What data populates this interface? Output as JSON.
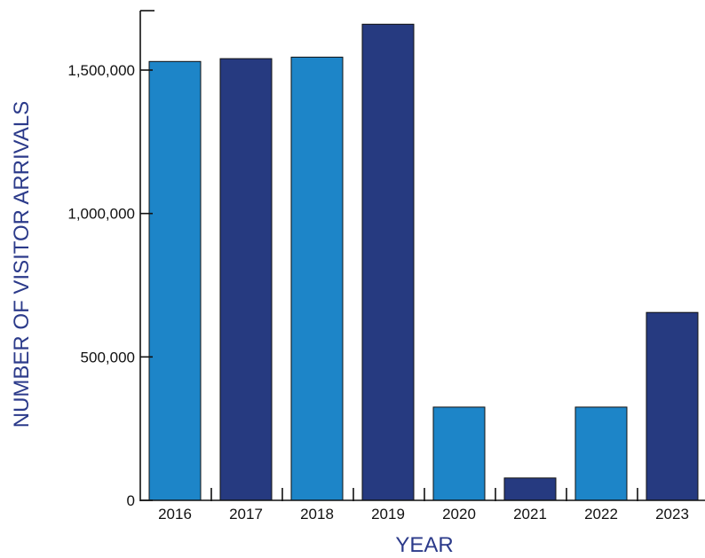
{
  "chart_data": {
    "type": "bar",
    "title": "",
    "xlabel": "YEAR",
    "ylabel": "NUMBER OF VISITOR ARRIVALS",
    "categories": [
      "2016",
      "2017",
      "2018",
      "2019",
      "2020",
      "2021",
      "2022",
      "2023"
    ],
    "values": [
      1530000,
      1540000,
      1545000,
      1660000,
      325000,
      78000,
      325000,
      655000
    ],
    "ylim": [
      0,
      1700000
    ],
    "yticks": [
      0,
      500000,
      1000000,
      1500000
    ],
    "ytick_labels": [
      "0",
      "500,000",
      "1,000,000",
      "1,500,000"
    ],
    "grid": false,
    "legend": "none",
    "colors": {
      "light_bar": "#1d85c8",
      "dark_bar": "#263a80",
      "axis_title": "#2b3a8a",
      "axis": "#111111"
    }
  }
}
